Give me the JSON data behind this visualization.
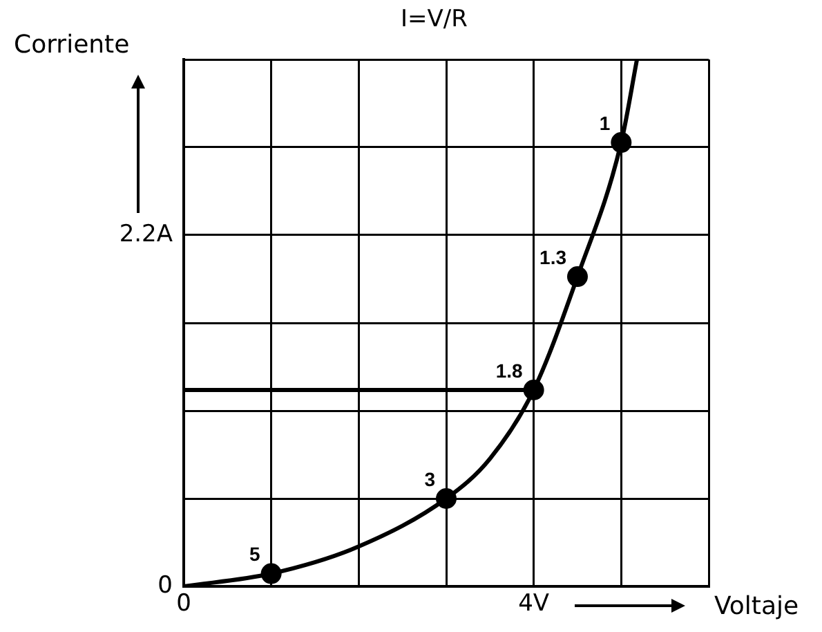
{
  "chart_data": {
    "type": "line",
    "title": "I=V/R",
    "xlabel": "Voltaje",
    "ylabel": "Corriente",
    "xlim": [
      0,
      6
    ],
    "xticks": [
      0,
      {
        "value": 1,
        "label": null
      },
      {
        "value": 2,
        "label": null
      },
      {
        "value": 3,
        "label": null
      },
      {
        "value": 4,
        "label": "4V"
      },
      {
        "value": 5,
        "label": null
      },
      {
        "value": 6,
        "label": null
      }
    ],
    "ylim": [
      0,
      3.3
    ],
    "yticks": [
      0,
      {
        "value": 0.55,
        "label": null
      },
      {
        "value": 1.1,
        "label": null
      },
      {
        "value": 1.65,
        "label": null
      },
      {
        "value": 2.2,
        "label": "2.2A"
      },
      {
        "value": 2.75,
        "label": null
      },
      {
        "value": 3.3,
        "label": null
      }
    ],
    "grid": true,
    "legend": false,
    "series": [
      {
        "type": "line",
        "color": "#000000",
        "marker": "none",
        "x": [
          0,
          1,
          2,
          3,
          3.5,
          4,
          4.5,
          5,
          5.18
        ],
        "values": [
          0,
          0.08,
          0.25,
          0.55,
          0.8,
          1.23,
          1.94,
          2.78,
          3.3
        ]
      },
      {
        "type": "line",
        "color": "#000000",
        "marker": "none",
        "x": [
          0,
          4
        ],
        "values": [
          1.23,
          1.23
        ]
      },
      {
        "type": "scatter",
        "color": "#000000",
        "marker": "circle",
        "x": [
          1,
          3,
          4,
          4.5,
          5
        ],
        "values": [
          0.08,
          0.55,
          1.23,
          1.94,
          2.78
        ]
      }
    ],
    "annotations": [
      {
        "text": "5",
        "x": 1,
        "y": 0.08
      },
      {
        "text": "3",
        "x": 3,
        "y": 0.55
      },
      {
        "text": "1.8",
        "x": 4,
        "y": 1.23
      },
      {
        "text": "1.3",
        "x": 4.5,
        "y": 1.94
      },
      {
        "text": "1",
        "x": 5,
        "y": 2.78
      }
    ]
  }
}
